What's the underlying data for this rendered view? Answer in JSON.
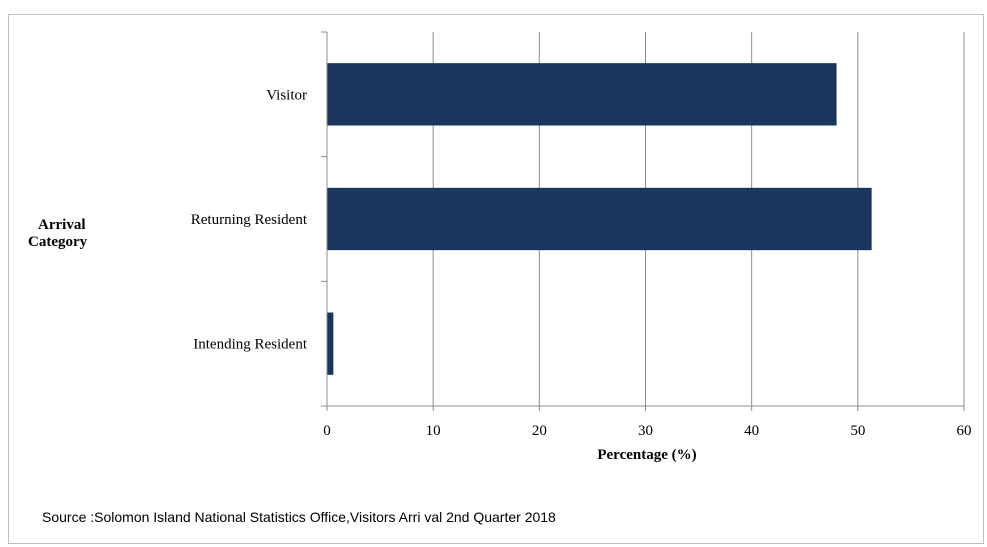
{
  "chart_data": {
    "type": "bar",
    "orientation": "horizontal",
    "categories": [
      "Visitor",
      "Returning Resident",
      "Intending Resident"
    ],
    "values": [
      48,
      51.3,
      0.6
    ],
    "xlabel": "Percentage (%)",
    "ylabel_line1": "Arrival",
    "ylabel_line2": "Category",
    "xlim": [
      0,
      60
    ],
    "xticks": [
      "0",
      "10",
      "20",
      "30",
      "40",
      "50",
      "60"
    ],
    "grid": "vertical",
    "bar_color": "#1b365d",
    "grid_color": "#8c8c8c"
  },
  "source_text": "Source :Solomon Island National Statistics Office,Visitors Arri val 2nd Quarter 2018"
}
